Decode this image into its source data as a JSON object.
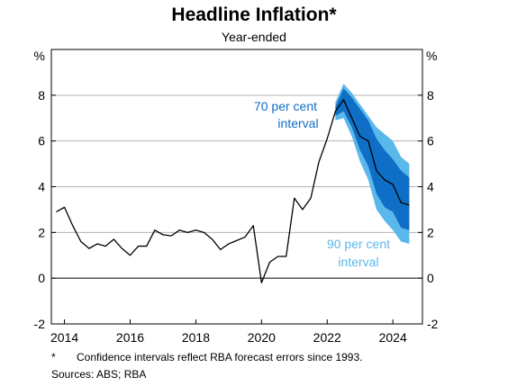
{
  "chart_data": {
    "type": "line",
    "title": "Headline Inflation*",
    "subtitle": "Year-ended",
    "ylabel_left": "%",
    "ylabel_right": "%",
    "ylim": [
      -2,
      10
    ],
    "yticks": [
      -2,
      0,
      2,
      4,
      6,
      8
    ],
    "xlim": [
      2013.6,
      2024.9
    ],
    "xticks": [
      2014,
      2016,
      2018,
      2020,
      2022,
      2024
    ],
    "grid": true,
    "series": [
      {
        "points": [
          [
            2013.75,
            2.9
          ],
          [
            2014.0,
            3.1
          ],
          [
            2014.25,
            2.3
          ],
          [
            2014.5,
            1.6
          ],
          [
            2014.75,
            1.3
          ],
          [
            2015.0,
            1.5
          ],
          [
            2015.25,
            1.4
          ],
          [
            2015.5,
            1.7
          ],
          [
            2015.75,
            1.3
          ],
          [
            2016.0,
            1.0
          ],
          [
            2016.25,
            1.4
          ],
          [
            2016.5,
            1.4
          ],
          [
            2016.75,
            2.1
          ],
          [
            2017.0,
            1.9
          ],
          [
            2017.25,
            1.85
          ],
          [
            2017.5,
            2.1
          ],
          [
            2017.75,
            2.0
          ],
          [
            2018.0,
            2.1
          ],
          [
            2018.25,
            2.0
          ],
          [
            2018.5,
            1.7
          ],
          [
            2018.75,
            1.25
          ],
          [
            2019.0,
            1.5
          ],
          [
            2019.25,
            1.65
          ],
          [
            2019.5,
            1.8
          ],
          [
            2019.75,
            2.3
          ],
          [
            2020.0,
            -0.2
          ],
          [
            2020.25,
            0.7
          ],
          [
            2020.5,
            0.95
          ],
          [
            2020.75,
            0.95
          ],
          [
            2021.0,
            3.5
          ],
          [
            2021.25,
            3.0
          ],
          [
            2021.5,
            3.5
          ],
          [
            2021.75,
            5.1
          ],
          [
            2022.0,
            6.1
          ],
          [
            2022.25,
            7.3
          ],
          [
            2022.5,
            7.8
          ],
          [
            2022.75,
            7.0
          ],
          [
            2023.0,
            6.2
          ],
          [
            2023.25,
            6.0
          ],
          [
            2023.5,
            4.7
          ],
          [
            2023.75,
            4.3
          ],
          [
            2024.0,
            4.1
          ],
          [
            2024.25,
            3.3
          ],
          [
            2024.5,
            3.2
          ]
        ]
      },
      {
        "name": "70 per cent interval",
        "color": "#0f6fc6",
        "x": [
          2022.25,
          2022.5,
          2022.75,
          2023.0,
          2023.25,
          2023.5,
          2023.75,
          2024.0,
          2024.25,
          2024.5
        ],
        "upper": [
          7.5,
          8.3,
          7.9,
          7.4,
          6.9,
          6.1,
          5.6,
          5.2,
          4.7,
          4.4
        ],
        "lower": [
          7.1,
          7.3,
          6.6,
          5.6,
          4.9,
          3.7,
          3.1,
          2.9,
          2.2,
          2.1
        ]
      },
      {
        "name": "90 per cent interval",
        "color": "#5ab8ea",
        "x": [
          2022.25,
          2022.5,
          2022.75,
          2023.0,
          2023.25,
          2023.5,
          2023.75,
          2024.0,
          2024.25,
          2024.5
        ],
        "upper": [
          7.7,
          8.5,
          8.1,
          7.6,
          7.1,
          6.6,
          6.3,
          6.0,
          5.3,
          5.0
        ],
        "lower": [
          6.9,
          7.0,
          6.2,
          5.1,
          4.3,
          3.0,
          2.5,
          2.1,
          1.6,
          1.5
        ]
      }
    ],
    "annotations": [
      {
        "text_line1": "70 per cent",
        "text_line2": "interval",
        "color": "#0f6fc6"
      },
      {
        "text_line1": "90 per cent",
        "text_line2": "interval",
        "color": "#5ab8ea"
      }
    ],
    "footnote_mark": "*",
    "footnote": "Confidence intervals reflect RBA forecast errors since 1993.",
    "source": "Sources: ABS; RBA"
  }
}
